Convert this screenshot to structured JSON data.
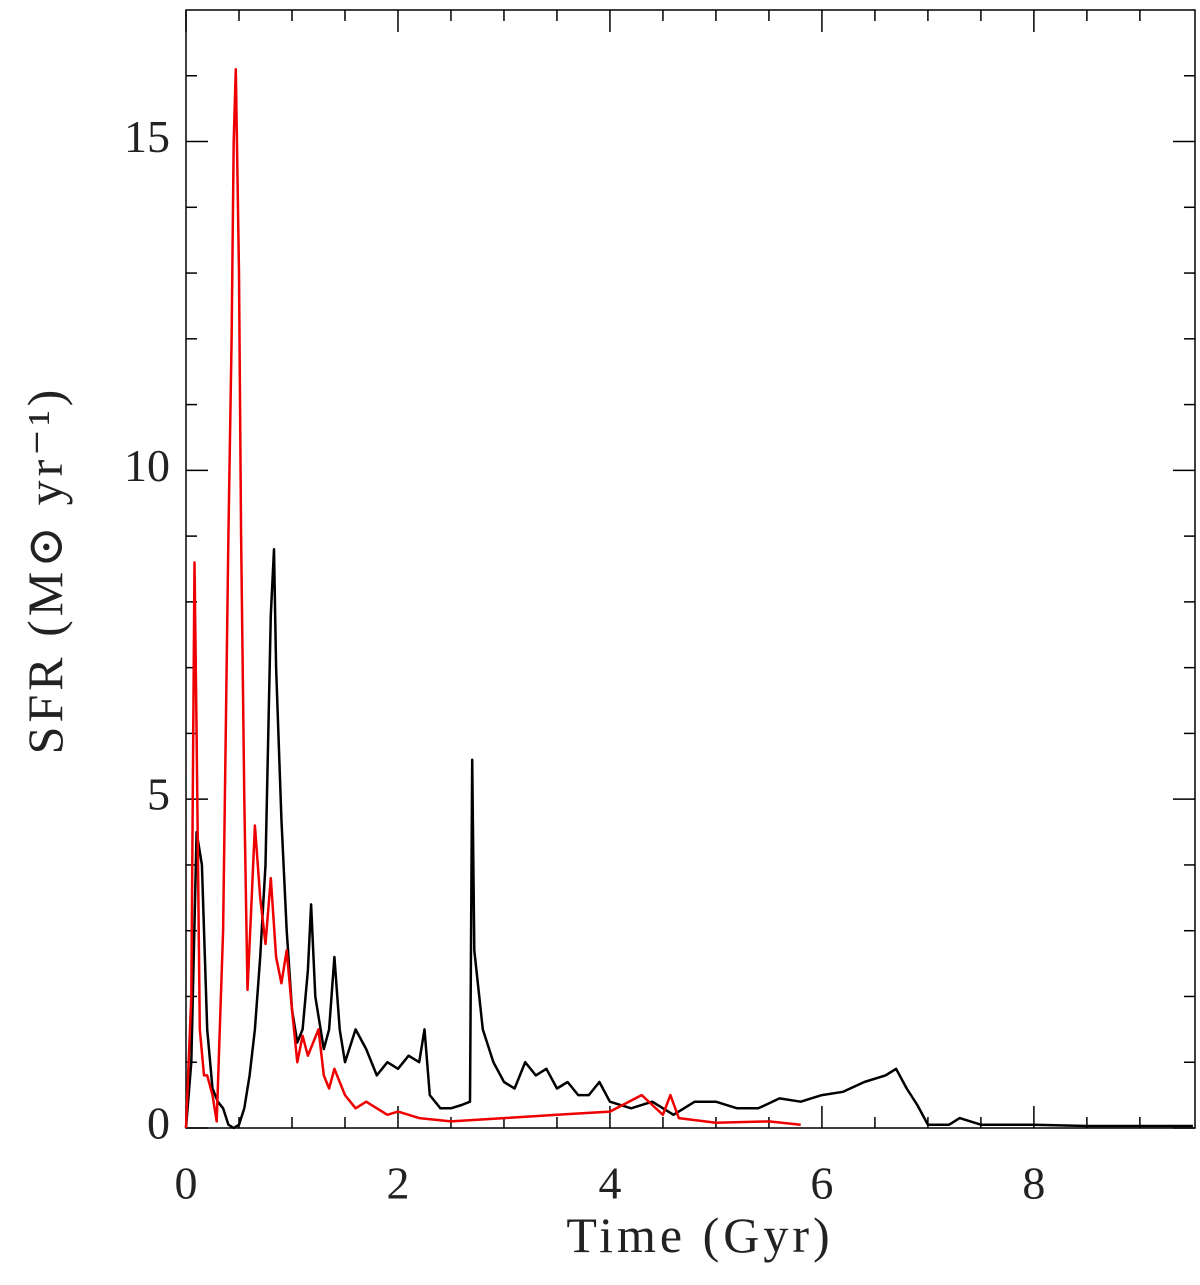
{
  "chart_data": {
    "type": "line",
    "x_label": "Time (Gyr)",
    "y_label": "SFR (M⊙ yr⁻¹)",
    "xlim": [
      0,
      9.52
    ],
    "ylim": [
      0,
      17
    ],
    "xticks": [
      0,
      2,
      4,
      6,
      8
    ],
    "yticks": [
      0,
      5,
      10,
      15
    ],
    "xminor": [
      0.5,
      1,
      1.5,
      2.5,
      3,
      3.5,
      4.5,
      5,
      5.5,
      6.5,
      7,
      7.5,
      8.5,
      9
    ],
    "yminor": [
      1,
      2,
      3,
      4,
      6,
      7,
      8,
      9,
      11,
      12,
      13,
      14,
      16
    ],
    "series": [
      {
        "color": "#000000",
        "x": [
          0,
          0.05,
          0.1,
          0.15,
          0.2,
          0.25,
          0.3,
          0.35,
          0.4,
          0.45,
          0.5,
          0.55,
          0.6,
          0.65,
          0.7,
          0.75,
          0.8,
          0.83,
          0.85,
          0.9,
          0.95,
          1.0,
          1.05,
          1.1,
          1.15,
          1.18,
          1.22,
          1.3,
          1.35,
          1.4,
          1.45,
          1.5,
          1.6,
          1.7,
          1.8,
          1.9,
          2.0,
          2.1,
          2.2,
          2.25,
          2.3,
          2.4,
          2.5,
          2.6,
          2.68,
          2.7,
          2.72,
          2.8,
          2.9,
          3.0,
          3.1,
          3.2,
          3.3,
          3.4,
          3.5,
          3.6,
          3.7,
          3.8,
          3.9,
          4.0,
          4.2,
          4.4,
          4.6,
          4.8,
          5.0,
          5.2,
          5.4,
          5.6,
          5.8,
          6.0,
          6.2,
          6.4,
          6.6,
          6.7,
          6.8,
          6.9,
          7.0,
          7.2,
          7.3,
          7.5,
          8.0,
          8.5,
          9.0,
          9.5
        ],
        "values": [
          0,
          1,
          4.5,
          4.0,
          1.5,
          0.6,
          0.4,
          0.3,
          0.05,
          0,
          0.05,
          0.3,
          0.8,
          1.5,
          2.6,
          4.0,
          7.8,
          8.8,
          7.0,
          4.7,
          3.0,
          1.8,
          1.3,
          1.5,
          2.4,
          3.4,
          2.0,
          1.2,
          1.5,
          2.6,
          1.5,
          1.0,
          1.5,
          1.2,
          0.8,
          1.0,
          0.9,
          1.1,
          1.0,
          1.5,
          0.5,
          0.3,
          0.3,
          0.35,
          0.4,
          5.6,
          2.7,
          1.5,
          1.0,
          0.7,
          0.6,
          1.0,
          0.8,
          0.9,
          0.6,
          0.7,
          0.5,
          0.5,
          0.7,
          0.4,
          0.3,
          0.4,
          0.2,
          0.4,
          0.4,
          0.3,
          0.3,
          0.45,
          0.4,
          0.5,
          0.55,
          0.7,
          0.8,
          0.9,
          0.6,
          0.35,
          0.05,
          0.05,
          0.15,
          0.05,
          0.05,
          0.03,
          0.03,
          0.03
        ]
      },
      {
        "color": "#ee0000",
        "x": [
          0,
          0.05,
          0.08,
          0.1,
          0.13,
          0.17,
          0.2,
          0.25,
          0.29,
          0.35,
          0.4,
          0.43,
          0.45,
          0.47,
          0.5,
          0.52,
          0.55,
          0.58,
          0.62,
          0.65,
          0.7,
          0.75,
          0.8,
          0.85,
          0.9,
          0.95,
          1.0,
          1.05,
          1.1,
          1.15,
          1.2,
          1.25,
          1.3,
          1.35,
          1.4,
          1.5,
          1.6,
          1.7,
          1.8,
          1.9,
          2.0,
          2.2,
          2.5,
          3.0,
          3.5,
          4.0,
          4.3,
          4.4,
          4.5,
          4.57,
          4.65,
          5.0,
          5.5,
          5.8
        ],
        "values": [
          0,
          2,
          8.6,
          6,
          1.5,
          0.8,
          0.8,
          0.5,
          0.1,
          3,
          9,
          12,
          15,
          16.1,
          13,
          9,
          5,
          2.1,
          3.5,
          4.6,
          3.5,
          2.8,
          3.8,
          2.6,
          2.2,
          2.7,
          1.8,
          1.0,
          1.4,
          1.1,
          1.3,
          1.5,
          0.8,
          0.6,
          0.9,
          0.5,
          0.3,
          0.4,
          0.3,
          0.2,
          0.25,
          0.15,
          0.1,
          0.15,
          0.2,
          0.25,
          0.5,
          0.35,
          0.2,
          0.5,
          0.15,
          0.08,
          0.1,
          0.05
        ]
      }
    ]
  }
}
